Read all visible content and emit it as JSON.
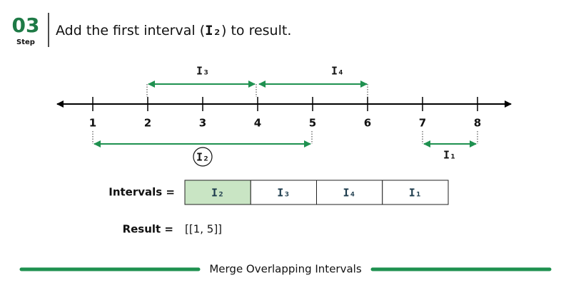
{
  "header": {
    "step_number": "03",
    "step_label": "Step",
    "instruction_before": "Add the first interval (",
    "instruction_interval": "I₂",
    "instruction_after": ") to result."
  },
  "number_line": {
    "ticks": [
      1,
      2,
      3,
      4,
      5,
      6,
      7,
      8
    ]
  },
  "intervals": [
    {
      "label": "I₃"
    },
    {
      "label": "I₄"
    },
    {
      "label": "I₂"
    },
    {
      "label": "I₁"
    }
  ],
  "table": {
    "label": "Intervals =",
    "cells": [
      "I₂",
      "I₃",
      "I₄",
      "I₁"
    ]
  },
  "result": {
    "label": "Result =",
    "value": "[[1, 5]]"
  },
  "footer": {
    "title": "Merge Overlapping Intervals"
  }
}
